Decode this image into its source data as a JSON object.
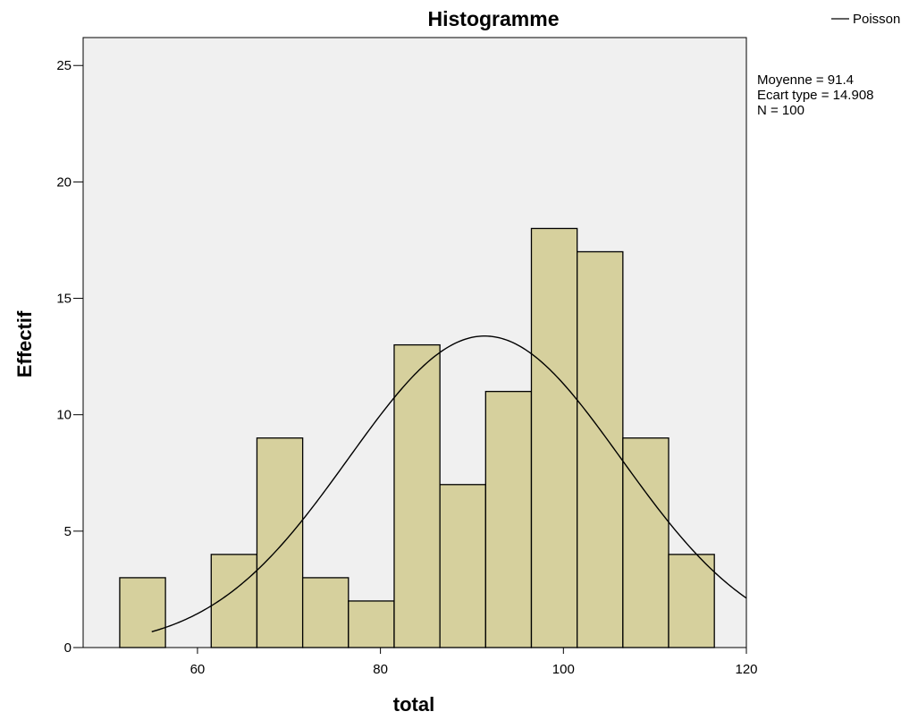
{
  "chart_data": {
    "type": "bar",
    "title": "Histogramme",
    "xlabel": "total",
    "ylabel": "Effectif",
    "xlim": [
      47.5,
      120
    ],
    "ylim": [
      0,
      26.2
    ],
    "xticks": [
      60,
      80,
      100,
      120
    ],
    "yticks": [
      0,
      5,
      10,
      15,
      20,
      25
    ],
    "bins": [
      {
        "start": 51.5,
        "end": 56.5,
        "count": 3
      },
      {
        "start": 56.5,
        "end": 61.5,
        "count": 0
      },
      {
        "start": 61.5,
        "end": 66.5,
        "count": 4
      },
      {
        "start": 66.5,
        "end": 71.5,
        "count": 9
      },
      {
        "start": 71.5,
        "end": 76.5,
        "count": 3
      },
      {
        "start": 76.5,
        "end": 81.5,
        "count": 2
      },
      {
        "start": 81.5,
        "end": 86.5,
        "count": 13
      },
      {
        "start": 86.5,
        "end": 91.5,
        "count": 7
      },
      {
        "start": 91.5,
        "end": 96.5,
        "count": 11
      },
      {
        "start": 96.5,
        "end": 101.5,
        "count": 18
      },
      {
        "start": 101.5,
        "end": 106.5,
        "count": 17
      },
      {
        "start": 106.5,
        "end": 111.5,
        "count": 9
      },
      {
        "start": 111.5,
        "end": 116.5,
        "count": 4
      }
    ],
    "curve": {
      "name": "Poisson",
      "mean": 91.4,
      "sd": 14.908,
      "n": 100,
      "bin_width": 5
    },
    "stats": [
      "Moyenne = 91.4",
      "Ecart type = 14.908",
      "N = 100"
    ],
    "legend_position": "top-right",
    "grid": false,
    "colors": {
      "bar_fill": "#d6d09d",
      "bar_stroke": "#000000",
      "plot_background": "#f0f0f0",
      "curve": "#000000"
    }
  }
}
